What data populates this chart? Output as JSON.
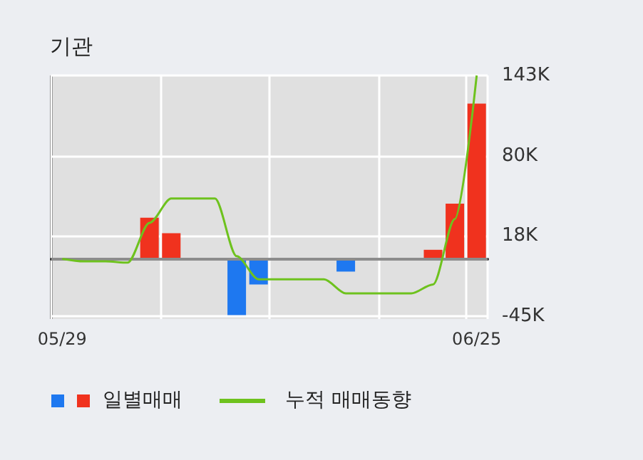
{
  "chart_data": {
    "type": "bar",
    "title": "기관",
    "categories": [
      "05/29",
      null,
      null,
      null,
      null,
      null,
      null,
      null,
      null,
      null,
      null,
      null,
      null,
      null,
      null,
      null,
      null,
      null,
      null,
      "06/25"
    ],
    "series": [
      {
        "name": "일별매매",
        "colors": [
          "#1e78f0",
          "#1e78f0",
          "#1e78f0",
          "#1e78f0",
          "#f0321e",
          "#f0321e",
          "#1e78f0",
          "#1e78f0",
          "#1e78f0",
          "#1e78f0",
          "#1e78f0",
          "#1e78f0",
          "#1e78f0",
          "#1e78f0",
          "#1e78f0",
          "#1e78f0",
          "#1e78f0",
          "#f0321e",
          "#f0321e",
          "#f0321e"
        ],
        "values": [
          null,
          null,
          null,
          null,
          32,
          20,
          null,
          null,
          -44,
          -20,
          null,
          null,
          null,
          -10,
          null,
          null,
          null,
          7,
          43,
          121
        ]
      },
      {
        "name": "누적 매매동향",
        "type": "line",
        "color": "#6ec21e",
        "values": [
          0,
          -2,
          -2,
          -3,
          28,
          47,
          47,
          47,
          2,
          -16,
          -16,
          -16,
          -16,
          -27,
          -27,
          -27,
          -27,
          -20,
          31,
          143
        ]
      }
    ],
    "ylim": [
      -47,
      143
    ],
    "yticks": [
      {
        "value": -45,
        "label": "-45K"
      },
      {
        "value": 18,
        "label": "18K"
      },
      {
        "value": 80,
        "label": "80K"
      },
      {
        "value": 143,
        "label": "143K"
      }
    ],
    "ref_lines": [
      {
        "axis": "y",
        "value": 0,
        "color": "#8c8c8c"
      }
    ],
    "grid": true,
    "legend": "bottom",
    "marker": "none"
  }
}
